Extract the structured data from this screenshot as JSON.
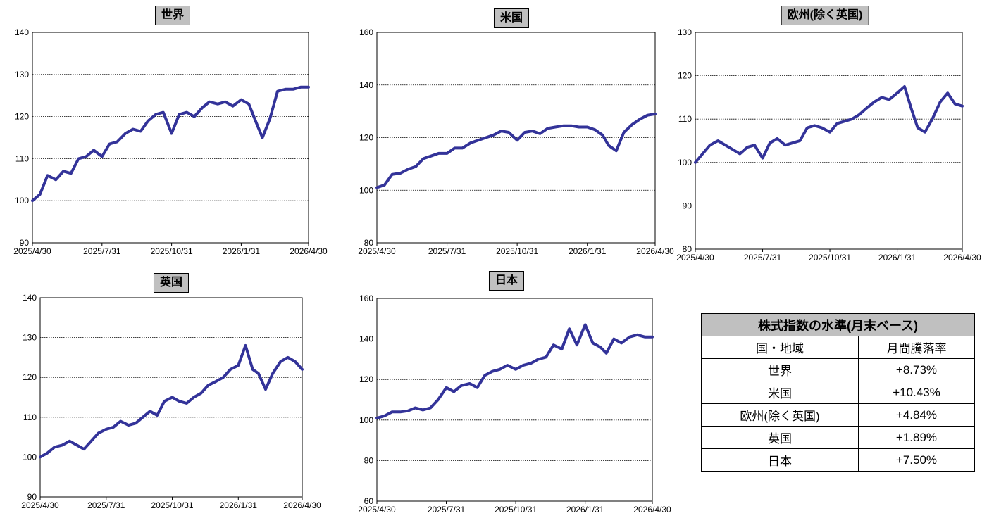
{
  "chart_data": [
    {
      "type": "line",
      "title": "世界",
      "ylim": [
        90,
        140
      ],
      "yticks": [
        "90",
        "100",
        "110",
        "120",
        "130",
        "140"
      ],
      "xticks": [
        "2025/4/30",
        "2025/7/31",
        "2025/10/31",
        "2026/1/31",
        "2026/4/30"
      ],
      "series": [
        {
          "color": "#333399",
          "x": [
            "2025/4/30",
            "2025/5/10",
            "2025/5/20",
            "2025/5/31",
            "2025/6/10",
            "2025/6/20",
            "2025/6/30",
            "2025/7/10",
            "2025/7/20",
            "2025/7/31",
            "2025/8/10",
            "2025/8/20",
            "2025/8/31",
            "2025/9/10",
            "2025/9/20",
            "2025/9/30",
            "2025/10/10",
            "2025/10/20",
            "2025/10/31",
            "2025/11/10",
            "2025/11/20",
            "2025/11/30",
            "2025/12/10",
            "2025/12/20",
            "2025/12/31",
            "2026/1/10",
            "2026/1/20",
            "2026/1/31",
            "2026/2/10",
            "2026/2/20",
            "2026/2/28",
            "2026/3/10",
            "2026/3/20",
            "2026/3/31",
            "2026/4/10",
            "2026/4/20",
            "2026/4/30"
          ],
          "values": [
            100,
            101.5,
            106,
            105,
            107,
            106.5,
            110,
            110.5,
            112,
            110.5,
            113.5,
            114,
            116,
            117,
            116.5,
            119,
            120.5,
            121,
            116,
            120.5,
            121,
            120,
            122,
            123.5,
            123,
            123.5,
            122.5,
            124,
            123,
            118.5,
            115,
            119.5,
            126,
            126.5,
            126.5,
            127,
            127
          ]
        }
      ]
    },
    {
      "type": "line",
      "title": "米国",
      "ylim": [
        80,
        160
      ],
      "yticks": [
        "80",
        "100",
        "120",
        "140",
        "160"
      ],
      "xticks": [
        "2025/4/30",
        "2025/7/31",
        "2025/10/31",
        "2026/1/31",
        "2026/4/30"
      ],
      "series": [
        {
          "color": "#333399",
          "x": [
            "2025/4/30",
            "2025/5/10",
            "2025/5/20",
            "2025/5/31",
            "2025/6/10",
            "2025/6/20",
            "2025/6/30",
            "2025/7/10",
            "2025/7/20",
            "2025/7/31",
            "2025/8/10",
            "2025/8/20",
            "2025/8/31",
            "2025/9/10",
            "2025/9/20",
            "2025/9/30",
            "2025/10/10",
            "2025/10/20",
            "2025/10/31",
            "2025/11/10",
            "2025/11/20",
            "2025/11/30",
            "2025/12/10",
            "2025/12/20",
            "2025/12/31",
            "2026/1/10",
            "2026/1/20",
            "2026/1/31",
            "2026/2/10",
            "2026/2/20",
            "2026/2/28",
            "2026/3/10",
            "2026/3/20",
            "2026/3/31",
            "2026/4/10",
            "2026/4/20",
            "2026/4/30"
          ],
          "values": [
            101,
            102,
            106,
            106.5,
            108,
            109,
            112,
            113,
            114,
            114,
            116,
            116,
            118,
            119,
            120,
            121,
            122.5,
            122,
            119,
            122,
            122.5,
            121.5,
            123.5,
            124,
            124.5,
            124.5,
            124,
            124,
            123,
            121,
            117,
            115,
            122,
            125,
            127,
            128.5,
            129
          ]
        }
      ]
    },
    {
      "type": "line",
      "title": "欧州(除く英国)",
      "ylim": [
        80,
        130
      ],
      "yticks": [
        "80",
        "90",
        "100",
        "110",
        "120",
        "130"
      ],
      "xticks": [
        "2025/4/30",
        "2025/7/31",
        "2025/10/31",
        "2026/1/31",
        "2026/4/30"
      ],
      "series": [
        {
          "color": "#333399",
          "x": [
            "2025/4/30",
            "2025/5/10",
            "2025/5/20",
            "2025/5/31",
            "2025/6/10",
            "2025/6/20",
            "2025/6/30",
            "2025/7/10",
            "2025/7/20",
            "2025/7/31",
            "2025/8/10",
            "2025/8/20",
            "2025/8/31",
            "2025/9/10",
            "2025/9/20",
            "2025/9/30",
            "2025/10/10",
            "2025/10/20",
            "2025/10/31",
            "2025/11/10",
            "2025/11/20",
            "2025/11/30",
            "2025/12/10",
            "2025/12/20",
            "2025/12/31",
            "2026/1/10",
            "2026/1/20",
            "2026/1/31",
            "2026/2/10",
            "2026/2/20",
            "2026/2/28",
            "2026/3/10",
            "2026/3/20",
            "2026/3/31",
            "2026/4/10",
            "2026/4/20",
            "2026/4/30"
          ],
          "values": [
            100,
            102,
            104,
            105,
            104,
            103,
            102,
            103.5,
            104,
            101,
            104.5,
            105.5,
            104,
            104.5,
            105,
            108,
            108.5,
            108,
            107,
            109,
            109.5,
            110,
            111,
            112.5,
            114,
            115,
            114.5,
            116,
            117.5,
            112,
            108,
            107,
            110,
            114,
            116,
            113.5,
            113
          ]
        }
      ]
    },
    {
      "type": "line",
      "title": "英国",
      "ylim": [
        90,
        140
      ],
      "yticks": [
        "90",
        "100",
        "110",
        "120",
        "130",
        "140"
      ],
      "xticks": [
        "2025/4/30",
        "2025/7/31",
        "2025/10/31",
        "2026/1/31",
        "2026/4/30"
      ],
      "series": [
        {
          "color": "#333399",
          "x": [
            "2025/4/30",
            "2025/5/10",
            "2025/5/20",
            "2025/5/31",
            "2025/6/10",
            "2025/6/20",
            "2025/6/30",
            "2025/7/10",
            "2025/7/20",
            "2025/7/31",
            "2025/8/10",
            "2025/8/20",
            "2025/8/31",
            "2025/9/10",
            "2025/9/20",
            "2025/9/30",
            "2025/10/10",
            "2025/10/20",
            "2025/10/31",
            "2025/11/10",
            "2025/11/20",
            "2025/11/30",
            "2025/12/10",
            "2025/12/20",
            "2025/12/31",
            "2026/1/10",
            "2026/1/20",
            "2026/1/31",
            "2026/2/10",
            "2026/2/20",
            "2026/2/28",
            "2026/3/10",
            "2026/3/20",
            "2026/3/31",
            "2026/4/10",
            "2026/4/20",
            "2026/4/30"
          ],
          "values": [
            100,
            101,
            102.5,
            103,
            104,
            103,
            102,
            104,
            106,
            107,
            107.5,
            109,
            108,
            108.5,
            110,
            111.5,
            110.5,
            114,
            115,
            114,
            113.5,
            115,
            116,
            118,
            119,
            120,
            122,
            123,
            128,
            122,
            121,
            117,
            121,
            124,
            125,
            124,
            122
          ]
        }
      ]
    },
    {
      "type": "line",
      "title": "日本",
      "ylim": [
        60,
        160
      ],
      "yticks": [
        "60",
        "80",
        "100",
        "120",
        "140",
        "160"
      ],
      "xticks": [
        "2025/4/30",
        "2025/7/31",
        "2025/10/31",
        "2026/1/31",
        "2026/4/30"
      ],
      "series": [
        {
          "color": "#333399",
          "x": [
            "2025/4/30",
            "2025/5/10",
            "2025/5/20",
            "2025/5/31",
            "2025/6/10",
            "2025/6/20",
            "2025/6/30",
            "2025/7/10",
            "2025/7/20",
            "2025/7/31",
            "2025/8/10",
            "2025/8/20",
            "2025/8/31",
            "2025/9/10",
            "2025/9/20",
            "2025/9/30",
            "2025/10/10",
            "2025/10/20",
            "2025/10/31",
            "2025/11/10",
            "2025/11/20",
            "2025/11/30",
            "2025/12/10",
            "2025/12/20",
            "2025/12/31",
            "2026/1/10",
            "2026/1/20",
            "2026/1/31",
            "2026/2/10",
            "2026/2/20",
            "2026/2/28",
            "2026/3/10",
            "2026/3/20",
            "2026/3/31",
            "2026/4/10",
            "2026/4/20",
            "2026/4/30"
          ],
          "values": [
            101,
            102,
            104,
            104,
            104.5,
            106,
            105,
            106,
            110,
            116,
            114,
            117,
            118,
            116,
            122,
            124,
            125,
            127,
            125,
            127,
            128,
            130,
            131,
            137,
            135,
            145,
            137,
            147,
            138,
            136,
            133,
            140,
            138,
            141,
            142,
            141,
            141
          ]
        }
      ]
    }
  ],
  "table": {
    "title": "株式指数の水準(月末ベース)",
    "col1": "国・地域",
    "col2": "月間騰落率",
    "rows": [
      {
        "region": "世界",
        "change": "+8.73%"
      },
      {
        "region": "米国",
        "change": "+10.43%"
      },
      {
        "region": "欧州(除く英国)",
        "change": "+4.84%"
      },
      {
        "region": "英国",
        "change": "+1.89%"
      },
      {
        "region": "日本",
        "change": "+7.50%"
      }
    ]
  }
}
